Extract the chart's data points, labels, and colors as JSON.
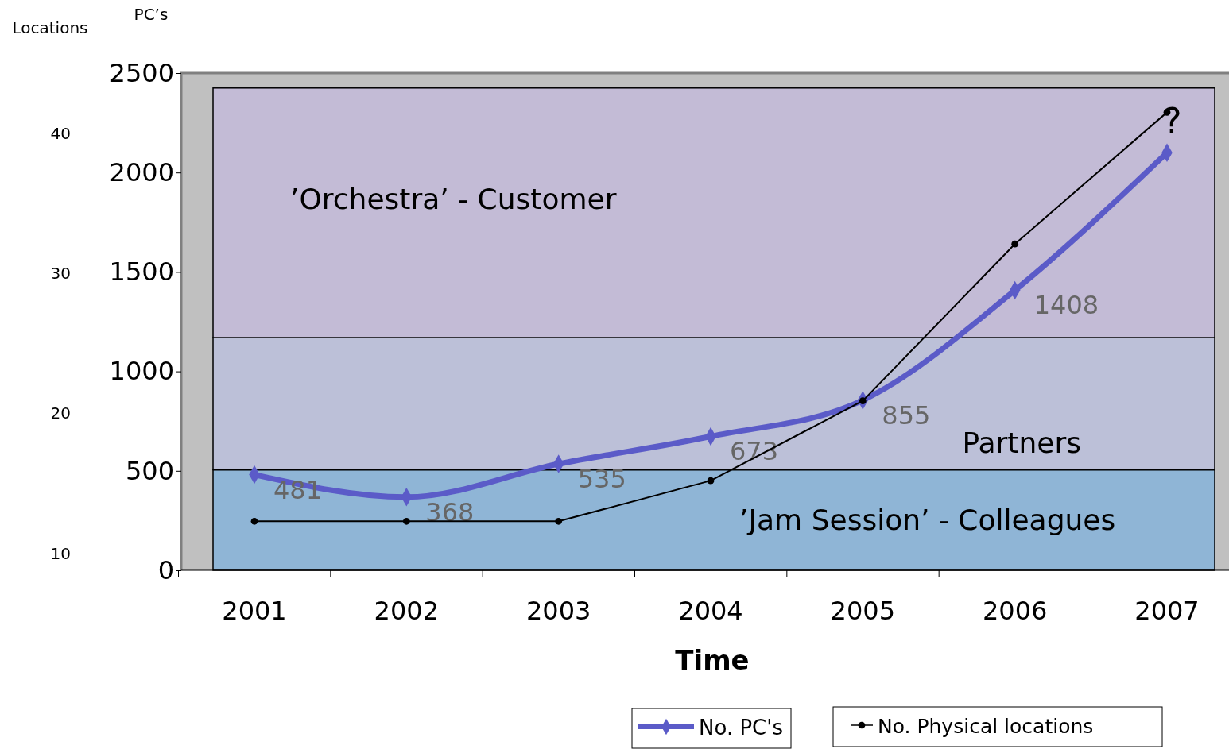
{
  "chart_data": {
    "type": "line",
    "xlabel": "Time",
    "ylabel": "PC’s",
    "y2label": "Locations",
    "categories": [
      "2001",
      "2002",
      "2003",
      "2004",
      "2005",
      "2006",
      "2007"
    ],
    "ylim": [
      0,
      2500
    ],
    "yticks": [
      0,
      500,
      1000,
      1500,
      2000,
      2500
    ],
    "y2lim": [
      8.8,
      44.3
    ],
    "y2ticks": [
      10,
      20,
      30,
      40
    ],
    "series": [
      {
        "name": "No. PC's",
        "color": "#5b5bc8",
        "values": [
          481,
          368,
          535,
          673,
          855,
          1408,
          2100
        ],
        "value_labels": [
          "481",
          "368",
          "535",
          "673",
          "855",
          "1408",
          null
        ],
        "marker": "diamond"
      },
      {
        "name": "No. Physical locations",
        "color": "#000000",
        "axis": "y2",
        "values": [
          12.3,
          12.3,
          12.3,
          15.2,
          20.9,
          32.1,
          41.5
        ],
        "marker": "circle"
      }
    ],
    "bands": [
      {
        "axis": "y",
        "from": 0,
        "to": 505,
        "label": "’Jam Session’ - Colleagues",
        "color": "#8fb5d6"
      },
      {
        "axis": "y",
        "from": 505,
        "to": 1170,
        "label": "Partners",
        "color": "#bcc0d8"
      },
      {
        "axis": "y",
        "from": 1170,
        "to": 2425,
        "label": "’Orchestra’ - Customer",
        "color": "#c3bbd6"
      }
    ],
    "annotations": [
      "?"
    ],
    "legend": "bottom"
  }
}
